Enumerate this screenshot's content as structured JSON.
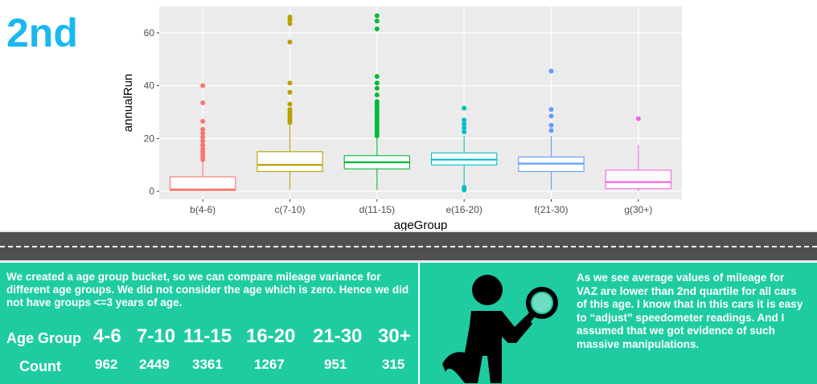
{
  "slide": {
    "title": "2nd",
    "title_color": "#1ab8f0"
  },
  "chart_data": {
    "type": "boxplot",
    "xlabel": "ageGroup",
    "ylabel": "annualRun",
    "ylim": [
      -3,
      70
    ],
    "yticks": [
      0,
      20,
      40,
      60
    ],
    "grid": true,
    "background": "#ebebeb",
    "categories": [
      "b(4-6)",
      "c(7-10)",
      "d(11-15)",
      "e(16-20)",
      "f(21-30)",
      "g(30+)"
    ],
    "colors": [
      "#f8766d",
      "#b79f00",
      "#00ba38",
      "#00bfc4",
      "#619cff",
      "#f564e3"
    ],
    "boxes": [
      {
        "min": 0,
        "q1": 0.3,
        "median": 0.7,
        "q3": 5.5,
        "max": 11.5,
        "outliers": [
          12,
          13,
          14,
          15,
          16,
          17.5,
          19,
          20.5,
          22,
          23.5,
          26.5,
          33.5,
          40
        ]
      },
      {
        "min": 0.5,
        "q1": 7.5,
        "median": 10,
        "q3": 15,
        "max": 25,
        "outliers": [
          26,
          27,
          28,
          29,
          30,
          31,
          33,
          37.5,
          41,
          56.5,
          63.5,
          65,
          66
        ]
      },
      {
        "min": 0.5,
        "q1": 8.5,
        "median": 11,
        "q3": 13.5,
        "max": 20.5,
        "outliers": [
          21,
          22,
          23,
          24,
          25,
          26,
          27,
          28,
          29,
          30,
          31,
          32,
          33,
          34,
          36.5,
          39,
          41,
          43.5,
          61.5,
          64.5,
          66.5
        ]
      },
      {
        "min": 2,
        "q1": 10,
        "median": 12,
        "q3": 14.5,
        "max": 21,
        "outliers": [
          0.5,
          1.5,
          22.5,
          24,
          25.5,
          27,
          31.5
        ]
      },
      {
        "min": 0.5,
        "q1": 7.5,
        "median": 10.5,
        "q3": 13,
        "max": 21,
        "outliers": [
          23,
          25,
          28.5,
          31,
          45.5
        ]
      },
      {
        "min": 0,
        "q1": 1,
        "median": 3.5,
        "q3": 8,
        "max": 17.5,
        "outliers": [
          27.5
        ]
      }
    ]
  },
  "left_panel": {
    "intro": "We created a age group bucket, so we can compare mileage variance for different age groups. We did not consider the age which is zero. Hence we did not have groups <=3 years of age.",
    "age_group_label": "Age Group",
    "count_label": "Count",
    "groups": [
      "4-6",
      "7-10",
      "11-15",
      "16-20",
      "21-30",
      "30+"
    ],
    "counts": [
      "962",
      "2449",
      "3361",
      "1267",
      "951",
      "315"
    ]
  },
  "right_panel": {
    "icon": "person-magnifying-glass-icon",
    "text": "As we see average values of mileage for VAZ are lower than 2nd quartile for all cars of this age. I know that in this cars it is easy to “adjust” speedometer readings. And I assumed that we got evidence of such massive manipulations."
  },
  "colors": {
    "panel": "#1fcca2",
    "road": "#505050"
  }
}
